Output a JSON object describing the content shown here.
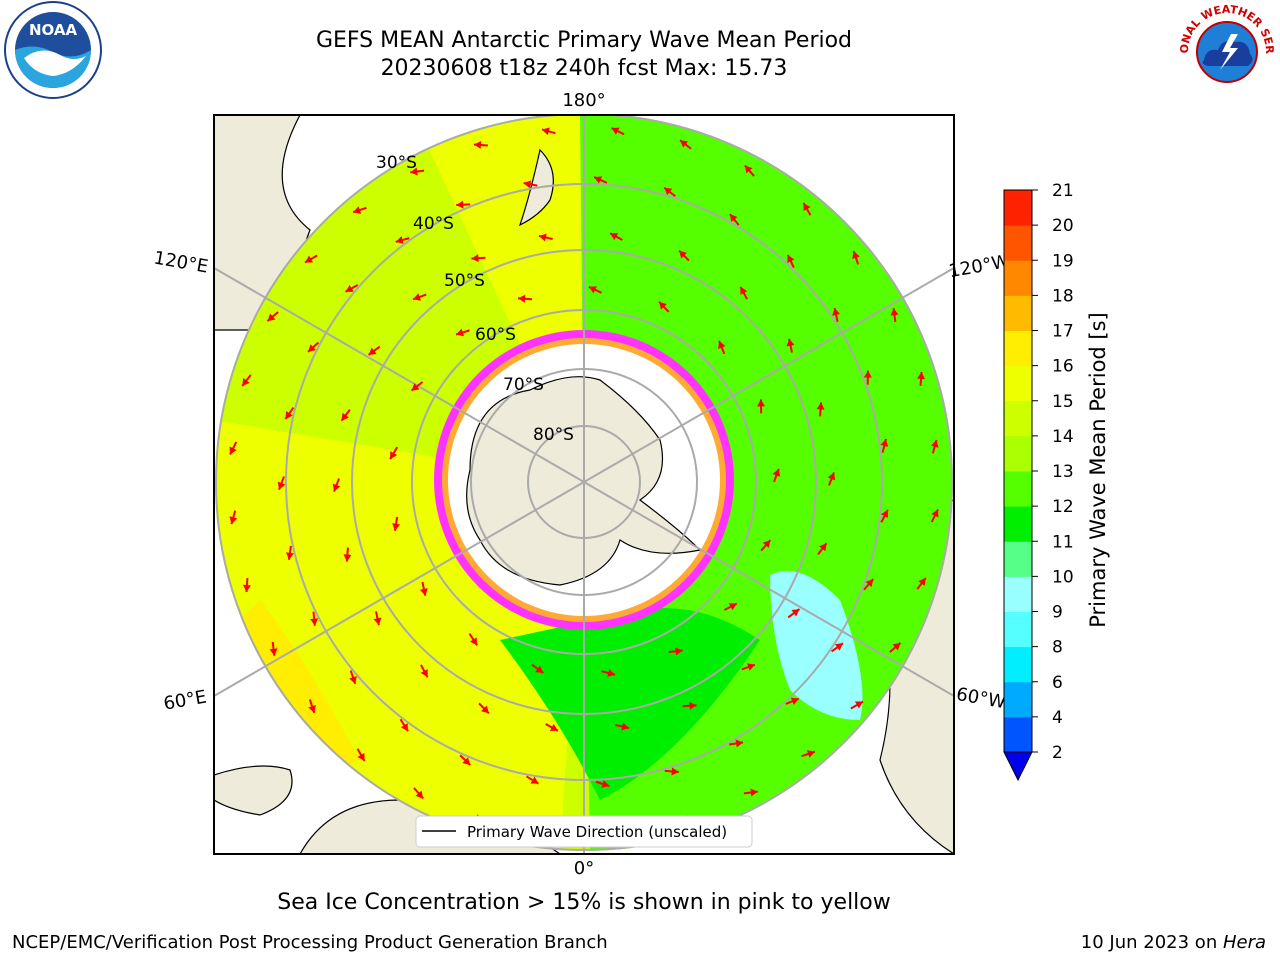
{
  "header": {
    "title_line1": "GEFS MEAN Antarctic Primary Wave Mean Period",
    "title_line2": "20230608 t18z 240h fcst   Max: 15.73"
  },
  "logos": {
    "left": "NOAA",
    "right": "NATIONAL WEATHER SERVICE"
  },
  "map": {
    "projection": "south-polar-stereographic",
    "lon_labels": {
      "top": "180°",
      "upper_left": "120°E",
      "upper_right": "120°W",
      "lower_left": "60°E",
      "lower_right": "60°W",
      "bottom": "0°"
    },
    "lat_labels": [
      "30°S",
      "40°S",
      "50°S",
      "60°S",
      "70°S",
      "80°S"
    ],
    "legend_label": "Primary Wave Direction (unscaled)",
    "arrow_color": "#ff0000",
    "land_color": "#efebda",
    "sea_ice_colors": [
      "#ff33ff",
      "#ffaa33",
      "#ffff66"
    ]
  },
  "colorbar": {
    "label": "Primary Wave Mean Period [s]",
    "ticks": [
      "2",
      "4",
      "6",
      "8",
      "9",
      "10",
      "11",
      "12",
      "13",
      "14",
      "15",
      "16",
      "17",
      "18",
      "19",
      "20",
      "21"
    ],
    "colors": [
      "#0055ff",
      "#00aaff",
      "#00eeff",
      "#55ffff",
      "#99ffff",
      "#55ff88",
      "#00ee00",
      "#55ff00",
      "#aaff00",
      "#ccff00",
      "#eeff00",
      "#ffee00",
      "#ffbb00",
      "#ff8800",
      "#ff5500",
      "#ff2200"
    ],
    "under_color": "#0000ee"
  },
  "note": "Sea Ice Concentration > 15% is shown in pink to yellow",
  "footer": {
    "left": "NCEP/EMC/Verification Post Processing Product Generation Branch",
    "right_date": "10 Jun 2023 on ",
    "right_host": "Hera"
  }
}
